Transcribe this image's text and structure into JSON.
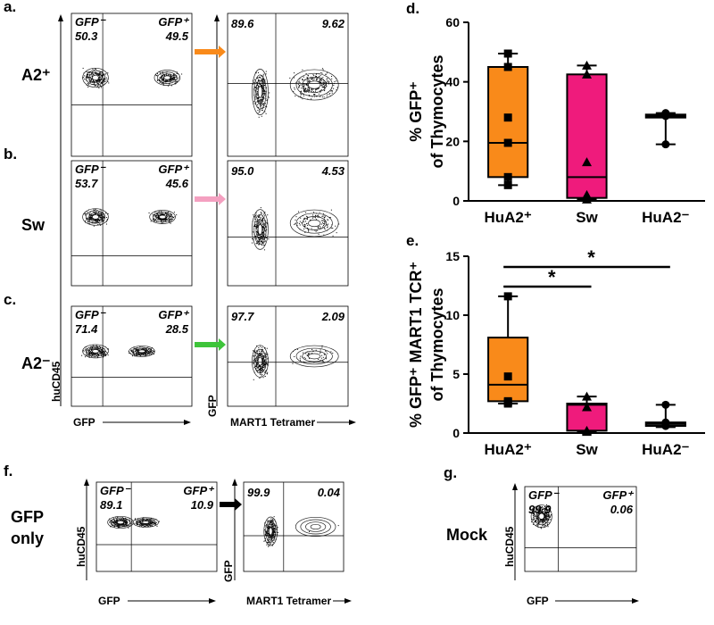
{
  "figure": {
    "rows": [
      {
        "panel": "a.",
        "label": [
          "A2⁺"
        ],
        "gfp_neg": "GFP⁻",
        "gfp_neg_value": "50.3",
        "gfp_pos": "GFP⁺",
        "gfp_pos_value": "49.5",
        "tet_neg_value": "89.6",
        "tet_pos_value": "9.62"
      },
      {
        "panel": "b.",
        "label": [
          "Sw"
        ],
        "gfp_neg": "GFP⁻",
        "gfp_neg_value": "53.7",
        "gfp_pos": "GFP⁺",
        "gfp_pos_value": "45.6",
        "tet_neg_value": "95.0",
        "tet_pos_value": "4.53"
      },
      {
        "panel": "c.",
        "label": [
          "A2⁻"
        ],
        "gfp_neg": "GFP⁻",
        "gfp_neg_value": "71.4",
        "gfp_pos": "GFP⁺",
        "gfp_pos_value": "28.5",
        "tet_neg_value": "97.7",
        "tet_pos_value": "2.09",
        "axis_y": "huCD45",
        "axis_x": "GFP",
        "tet_axis_y": "GFP",
        "tet_axis_x": "MART1 Tetramer"
      },
      {
        "panel": "f.",
        "label": [
          "GFP",
          "only"
        ],
        "gfp_neg": "GFP⁻",
        "gfp_neg_value": "89.1",
        "gfp_pos": "GFP⁺",
        "gfp_pos_value": "10.9",
        "tet_neg_value": "99.9",
        "tet_pos_value": "0.04",
        "axis_y": "huCD45",
        "axis_x": "GFP",
        "tet_axis_y": "GFP",
        "tet_axis_x": "MART1 Tetramer"
      }
    ],
    "mock": {
      "panel": "g.",
      "label": [
        "Mock"
      ],
      "gfp_neg": "GFP⁻",
      "gfp_neg_value": "99.9",
      "gfp_pos": "GFP⁺",
      "gfp_pos_value": "0.06",
      "axis_y": "huCD45",
      "axis_x": "GFP"
    }
  },
  "chart_data": [
    {
      "type": "box",
      "panel": "d.",
      "ylabel": [
        "% GFP⁺",
        "of Thymocytes"
      ],
      "ylim": [
        0,
        60
      ],
      "yticks": [
        0,
        20,
        40,
        60
      ],
      "categories": [
        "HuA2⁺",
        "Sw",
        "HuA2⁻"
      ],
      "boxes": [
        {
          "color": "#f98a1a",
          "marker": "square",
          "min": 5.3,
          "q1": 8,
          "median": 19.5,
          "q3": 45,
          "max": 49.5,
          "points": [
            49.5,
            45,
            28,
            19.5,
            8,
            5.3
          ]
        },
        {
          "color": "#ef1b7c",
          "marker": "triangle",
          "min": 0.5,
          "q1": 1,
          "median": 8,
          "q3": 42.5,
          "max": 45.5,
          "points": [
            45.5,
            42.5,
            13,
            2,
            0.5
          ]
        },
        {
          "color": "#333333",
          "marker": "circle",
          "min": 19,
          "q1": 28,
          "median": 28.5,
          "q3": 29,
          "max": 29.5,
          "points": [
            29.5,
            28.5,
            19
          ]
        }
      ]
    },
    {
      "type": "box",
      "panel": "e.",
      "ylabel": [
        "% GFP⁺ MART1 TCR⁺",
        "of Thymocytes"
      ],
      "ylim": [
        0,
        15
      ],
      "yticks": [
        0,
        5,
        10,
        15
      ],
      "categories": [
        "HuA2⁺",
        "Sw",
        "HuA2⁻"
      ],
      "annotations": [
        "*",
        "*"
      ],
      "boxes": [
        {
          "color": "#f98a1a",
          "marker": "square",
          "min": 2.5,
          "q1": 2.7,
          "median": 4.1,
          "q3": 8.1,
          "max": 11.6,
          "points": [
            11.6,
            4.8,
            2.7,
            2.6,
            2.5
          ]
        },
        {
          "color": "#ef1b7c",
          "marker": "triangle",
          "min": 0.1,
          "q1": 0.2,
          "median": 2.4,
          "q3": 2.5,
          "max": 3.1,
          "points": [
            3.1,
            2.2,
            0.2,
            0.1
          ]
        },
        {
          "color": "#333333",
          "marker": "circle",
          "min": 0.5,
          "q1": 0.6,
          "median": 0.8,
          "q3": 0.9,
          "max": 2.4,
          "points": [
            2.4,
            0.9,
            0.6
          ]
        }
      ]
    }
  ]
}
